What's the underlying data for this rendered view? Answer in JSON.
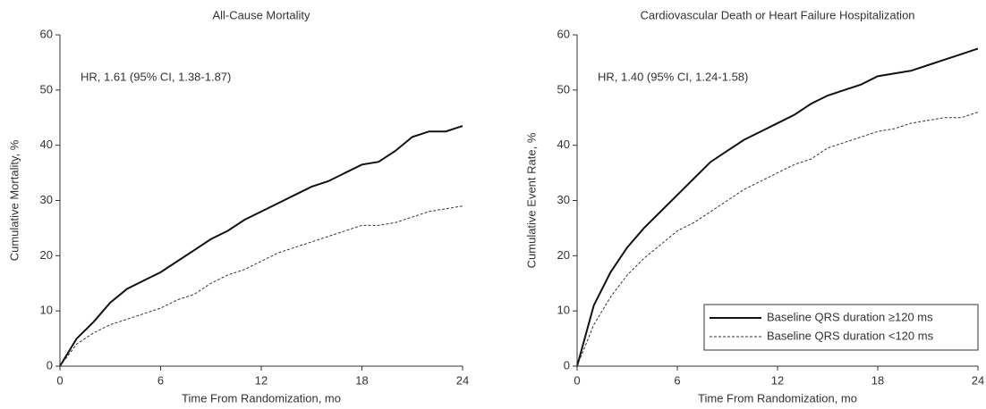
{
  "chart_data": [
    {
      "type": "line",
      "title": "All-Cause Mortality",
      "x_label": "Time From Randomization, mo",
      "y_label": "Cumulative Mortality, %",
      "annotation": "HR, 1.61 (95% CI, 1.38-1.87)",
      "x": [
        0,
        1,
        2,
        3,
        4,
        5,
        6,
        7,
        8,
        9,
        10,
        11,
        12,
        13,
        14,
        15,
        16,
        17,
        18,
        19,
        20,
        21,
        22,
        23,
        24
      ],
      "series": [
        {
          "color": "#111111",
          "style": "solid",
          "values": [
            0,
            5,
            8,
            11.5,
            14,
            15.5,
            17,
            19,
            21,
            23,
            24.5,
            26.5,
            28,
            29.5,
            31,
            32.5,
            33.5,
            35,
            36.5,
            37,
            39,
            41.5,
            42.5,
            42.5,
            43.5
          ]
        },
        {
          "color": "#333333",
          "style": "dashed",
          "values": [
            0,
            4,
            6,
            7.5,
            8.5,
            9.5,
            10.5,
            12,
            13,
            15,
            16.5,
            17.5,
            19,
            20.5,
            21.5,
            22.5,
            23.5,
            24.5,
            25.5,
            25.5,
            26,
            27,
            28,
            28.5,
            29
          ]
        }
      ],
      "xlim": [
        0,
        24
      ],
      "xticks": [
        0,
        6,
        12,
        18,
        24
      ],
      "ylim": [
        0,
        60
      ],
      "yticks": [
        0,
        10,
        20,
        30,
        40,
        50,
        60
      ]
    },
    {
      "type": "line",
      "title": "Cardiovascular Death or Heart Failure Hospitalization",
      "x_label": "Time From Randomization, mo",
      "y_label": "Cumulative Event Rate, %",
      "annotation": "HR, 1.40 (95% CI, 1.24-1.58)",
      "x": [
        0,
        1,
        2,
        3,
        4,
        5,
        6,
        7,
        8,
        9,
        10,
        11,
        12,
        13,
        14,
        15,
        16,
        17,
        18,
        19,
        20,
        21,
        22,
        23,
        24
      ],
      "series": [
        {
          "name": "Baseline QRS duration ≥120 ms",
          "color": "#111111",
          "style": "solid",
          "values": [
            0,
            11,
            17,
            21.5,
            25,
            28,
            31,
            34,
            37,
            39,
            41,
            42.5,
            44,
            45.5,
            47.5,
            49,
            50,
            51,
            52.5,
            53,
            53.5,
            54.5,
            55.5,
            56.5,
            57.5
          ]
        },
        {
          "name": "Baseline QRS duration <120 ms",
          "color": "#333333",
          "style": "dashed",
          "values": [
            0,
            7.5,
            12.5,
            16.5,
            19.5,
            22,
            24.5,
            26,
            28,
            30,
            32,
            33.5,
            35,
            36.5,
            37.5,
            39.5,
            40.5,
            41.5,
            42.5,
            43,
            44,
            44.5,
            45,
            45,
            46
          ]
        }
      ],
      "xlim": [
        0,
        24
      ],
      "xticks": [
        0,
        6,
        12,
        18,
        24
      ],
      "ylim": [
        0,
        60
      ],
      "yticks": [
        0,
        10,
        20,
        30,
        40,
        50,
        60
      ],
      "legend": "lower right"
    }
  ]
}
